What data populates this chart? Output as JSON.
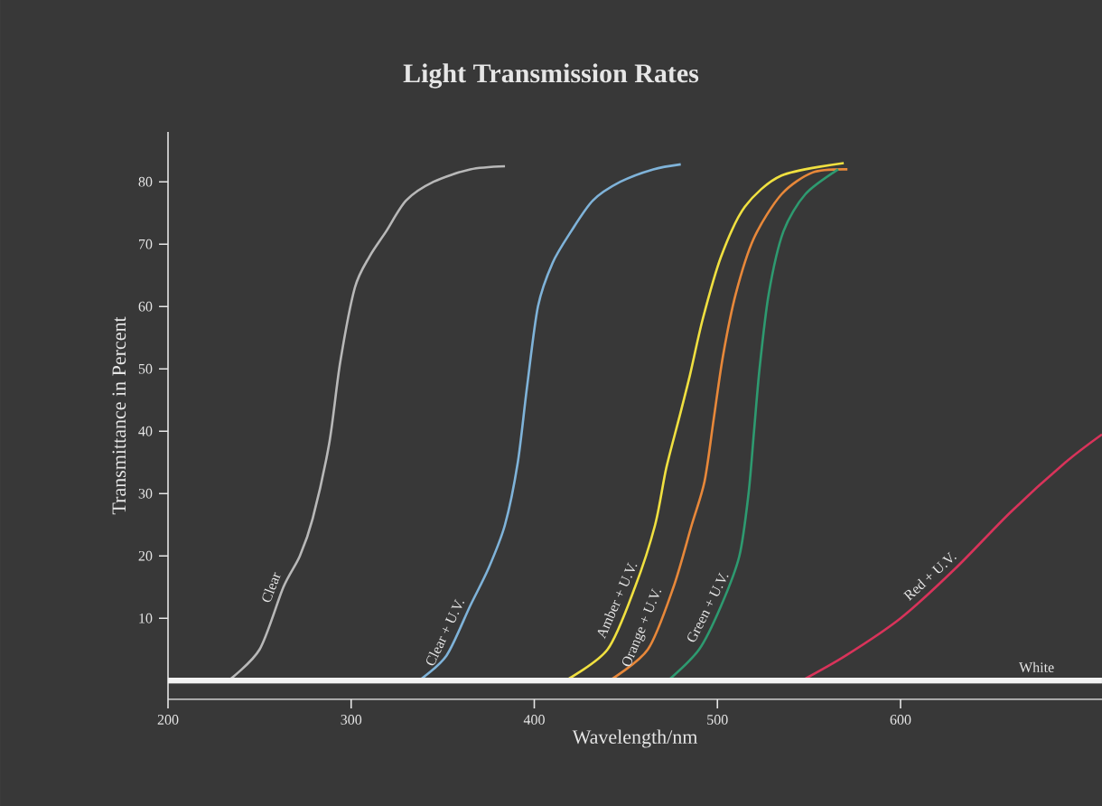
{
  "chart_data": {
    "type": "line",
    "title": "Light Transmission Rates",
    "xlabel": "Wavelength/nm",
    "ylabel": "Transmittance in Percent",
    "xlim": [
      200,
      710
    ],
    "ylim": [
      -3,
      88
    ],
    "xticks": [
      200,
      300,
      400,
      500,
      600
    ],
    "yticks": [
      10,
      20,
      30,
      40,
      50,
      60,
      70,
      80
    ],
    "series": [
      {
        "name": "Clear",
        "color": "#b8b8b8",
        "x": [
          233,
          250,
          263,
          272,
          279,
          288,
          294,
          302,
          310,
          319,
          330,
          345,
          365,
          384
        ],
        "values": [
          0,
          5,
          15,
          20,
          26,
          38,
          51,
          63,
          68,
          72,
          77,
          80,
          82,
          82.5
        ]
      },
      {
        "name": "Clear + U.V.",
        "color": "#7fb3d9",
        "x": [
          337,
          352,
          365,
          375,
          384,
          391,
          396,
          402,
          410,
          420,
          432,
          447,
          465,
          480
        ],
        "values": [
          0,
          4,
          12,
          18,
          25,
          35,
          47,
          60,
          67,
          72,
          77,
          80,
          82,
          82.8
        ]
      },
      {
        "name": "Amber + U.V.",
        "color": "#f0e040",
        "x": [
          417,
          440,
          455,
          466,
          472,
          479,
          485,
          492,
          502,
          515,
          535,
          569
        ],
        "values": [
          0,
          5,
          15,
          25,
          34,
          42,
          49,
          58,
          68,
          76,
          81,
          83
        ]
      },
      {
        "name": "Orange + U.V.",
        "color": "#e8883a",
        "x": [
          441,
          462,
          476,
          486,
          493,
          498,
          503,
          510,
          520,
          535,
          552,
          571
        ],
        "values": [
          0,
          5,
          15,
          25,
          32,
          42,
          52,
          62,
          71,
          78,
          81.5,
          82
        ]
      },
      {
        "name": "Green + U.V.",
        "color": "#2e9a70",
        "x": [
          473,
          490,
          502,
          512,
          517,
          520,
          523,
          528,
          536,
          548,
          566
        ],
        "values": [
          0,
          5,
          12,
          20,
          30,
          40,
          50,
          62,
          72,
          78,
          82
        ]
      },
      {
        "name": "Red + U.V.",
        "color": "#d8335a",
        "x": [
          546,
          570,
          600,
          630,
          660,
          690,
          710
        ],
        "values": [
          0,
          4,
          10,
          18,
          27,
          35,
          39.5
        ]
      },
      {
        "name": "White",
        "color": "#f2f2f2",
        "x": [
          200,
          710
        ],
        "values": [
          0,
          0
        ]
      }
    ]
  }
}
